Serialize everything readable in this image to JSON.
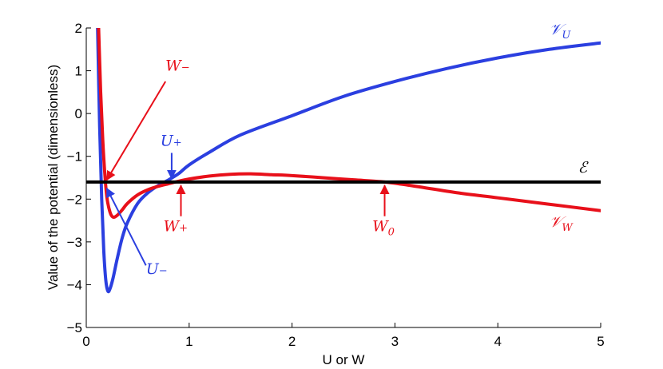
{
  "chart_data": {
    "type": "line",
    "title": "",
    "xlabel": "U or W",
    "ylabel": "Value of the potential (dimensionless)",
    "xlim": [
      0,
      5
    ],
    "ylim": [
      -5,
      2
    ],
    "xticks": [
      0,
      1,
      2,
      3,
      4,
      5
    ],
    "yticks": [
      -5,
      -4,
      -3,
      -2,
      -1,
      0,
      1,
      2
    ],
    "grid": false,
    "legend": "none",
    "series": [
      {
        "name": "𝒱U",
        "color": "#2b3fe0",
        "x": [
          0.11,
          0.13,
          0.15,
          0.17,
          0.19,
          0.21,
          0.23,
          0.26,
          0.3,
          0.35,
          0.4,
          0.5,
          0.6,
          0.7,
          0.8,
          0.9,
          1.0,
          1.2,
          1.5,
          2.0,
          2.5,
          3.0,
          3.5,
          4.0,
          4.5,
          5.0
        ],
        "y": [
          2.0,
          -0.3,
          -2.0,
          -3.2,
          -3.9,
          -4.15,
          -4.1,
          -3.85,
          -3.4,
          -2.9,
          -2.55,
          -2.1,
          -1.85,
          -1.68,
          -1.55,
          -1.4,
          -1.2,
          -0.9,
          -0.5,
          -0.05,
          0.4,
          0.75,
          1.05,
          1.3,
          1.5,
          1.65
        ]
      },
      {
        "name": "𝒱W",
        "color": "#e8101a",
        "x": [
          0.12,
          0.14,
          0.16,
          0.18,
          0.2,
          0.23,
          0.26,
          0.3,
          0.35,
          0.4,
          0.5,
          0.6,
          0.7,
          0.8,
          0.9,
          1.0,
          1.2,
          1.4,
          1.6,
          1.8,
          2.0,
          2.3,
          2.6,
          2.9,
          3.2,
          3.6,
          4.0,
          4.5,
          5.0
        ],
        "y": [
          2.0,
          0.5,
          -0.6,
          -1.4,
          -1.95,
          -2.3,
          -2.42,
          -2.38,
          -2.25,
          -2.1,
          -1.9,
          -1.78,
          -1.7,
          -1.64,
          -1.58,
          -1.53,
          -1.46,
          -1.42,
          -1.41,
          -1.43,
          -1.45,
          -1.5,
          -1.55,
          -1.6,
          -1.7,
          -1.85,
          -1.97,
          -2.12,
          -2.27
        ]
      },
      {
        "name": "ℰ",
        "color": "#000000",
        "x": [
          0,
          5
        ],
        "y": [
          -1.6,
          -1.6
        ]
      }
    ],
    "annotations": [
      {
        "label": "W",
        "sub": "−",
        "color": "#e8101a",
        "text_at": [
          0.77,
          1.0
        ],
        "arrow_from": [
          0.77,
          0.75
        ],
        "arrow_to": [
          0.2,
          -1.55
        ]
      },
      {
        "label": "U",
        "sub": "+",
        "color": "#2b3fe0",
        "text_at": [
          0.72,
          -0.75
        ],
        "arrow_from": [
          0.83,
          -0.92
        ],
        "arrow_to": [
          0.83,
          -1.52
        ]
      },
      {
        "label": "W",
        "sub": "+",
        "color": "#e8101a",
        "text_at": [
          0.75,
          -2.75
        ],
        "arrow_from": [
          0.92,
          -2.4
        ],
        "arrow_to": [
          0.92,
          -1.68
        ]
      },
      {
        "label": "W",
        "sub": "0",
        "color": "#e8101a",
        "text_at": [
          2.78,
          -2.75
        ],
        "arrow_from": [
          2.9,
          -2.4
        ],
        "arrow_to": [
          2.9,
          -1.68
        ]
      },
      {
        "label": "U",
        "sub": "−",
        "color": "#2b3fe0",
        "text_at": [
          0.58,
          -3.75
        ],
        "arrow_from": [
          0.58,
          -3.55
        ],
        "arrow_to": [
          0.2,
          -1.75
        ]
      },
      {
        "label": "𝒱",
        "sub": "U",
        "color": "#2b3fe0",
        "text_at": [
          4.5,
          1.85
        ],
        "arrow_from": null,
        "arrow_to": null
      },
      {
        "label": "𝒱",
        "sub": "W",
        "color": "#e8101a",
        "text_at": [
          4.5,
          -2.65
        ],
        "arrow_from": null,
        "arrow_to": null
      },
      {
        "label": "ℰ",
        "sub": "",
        "color": "#000000",
        "text_at": [
          4.78,
          -1.38
        ],
        "arrow_from": null,
        "arrow_to": null
      }
    ]
  }
}
